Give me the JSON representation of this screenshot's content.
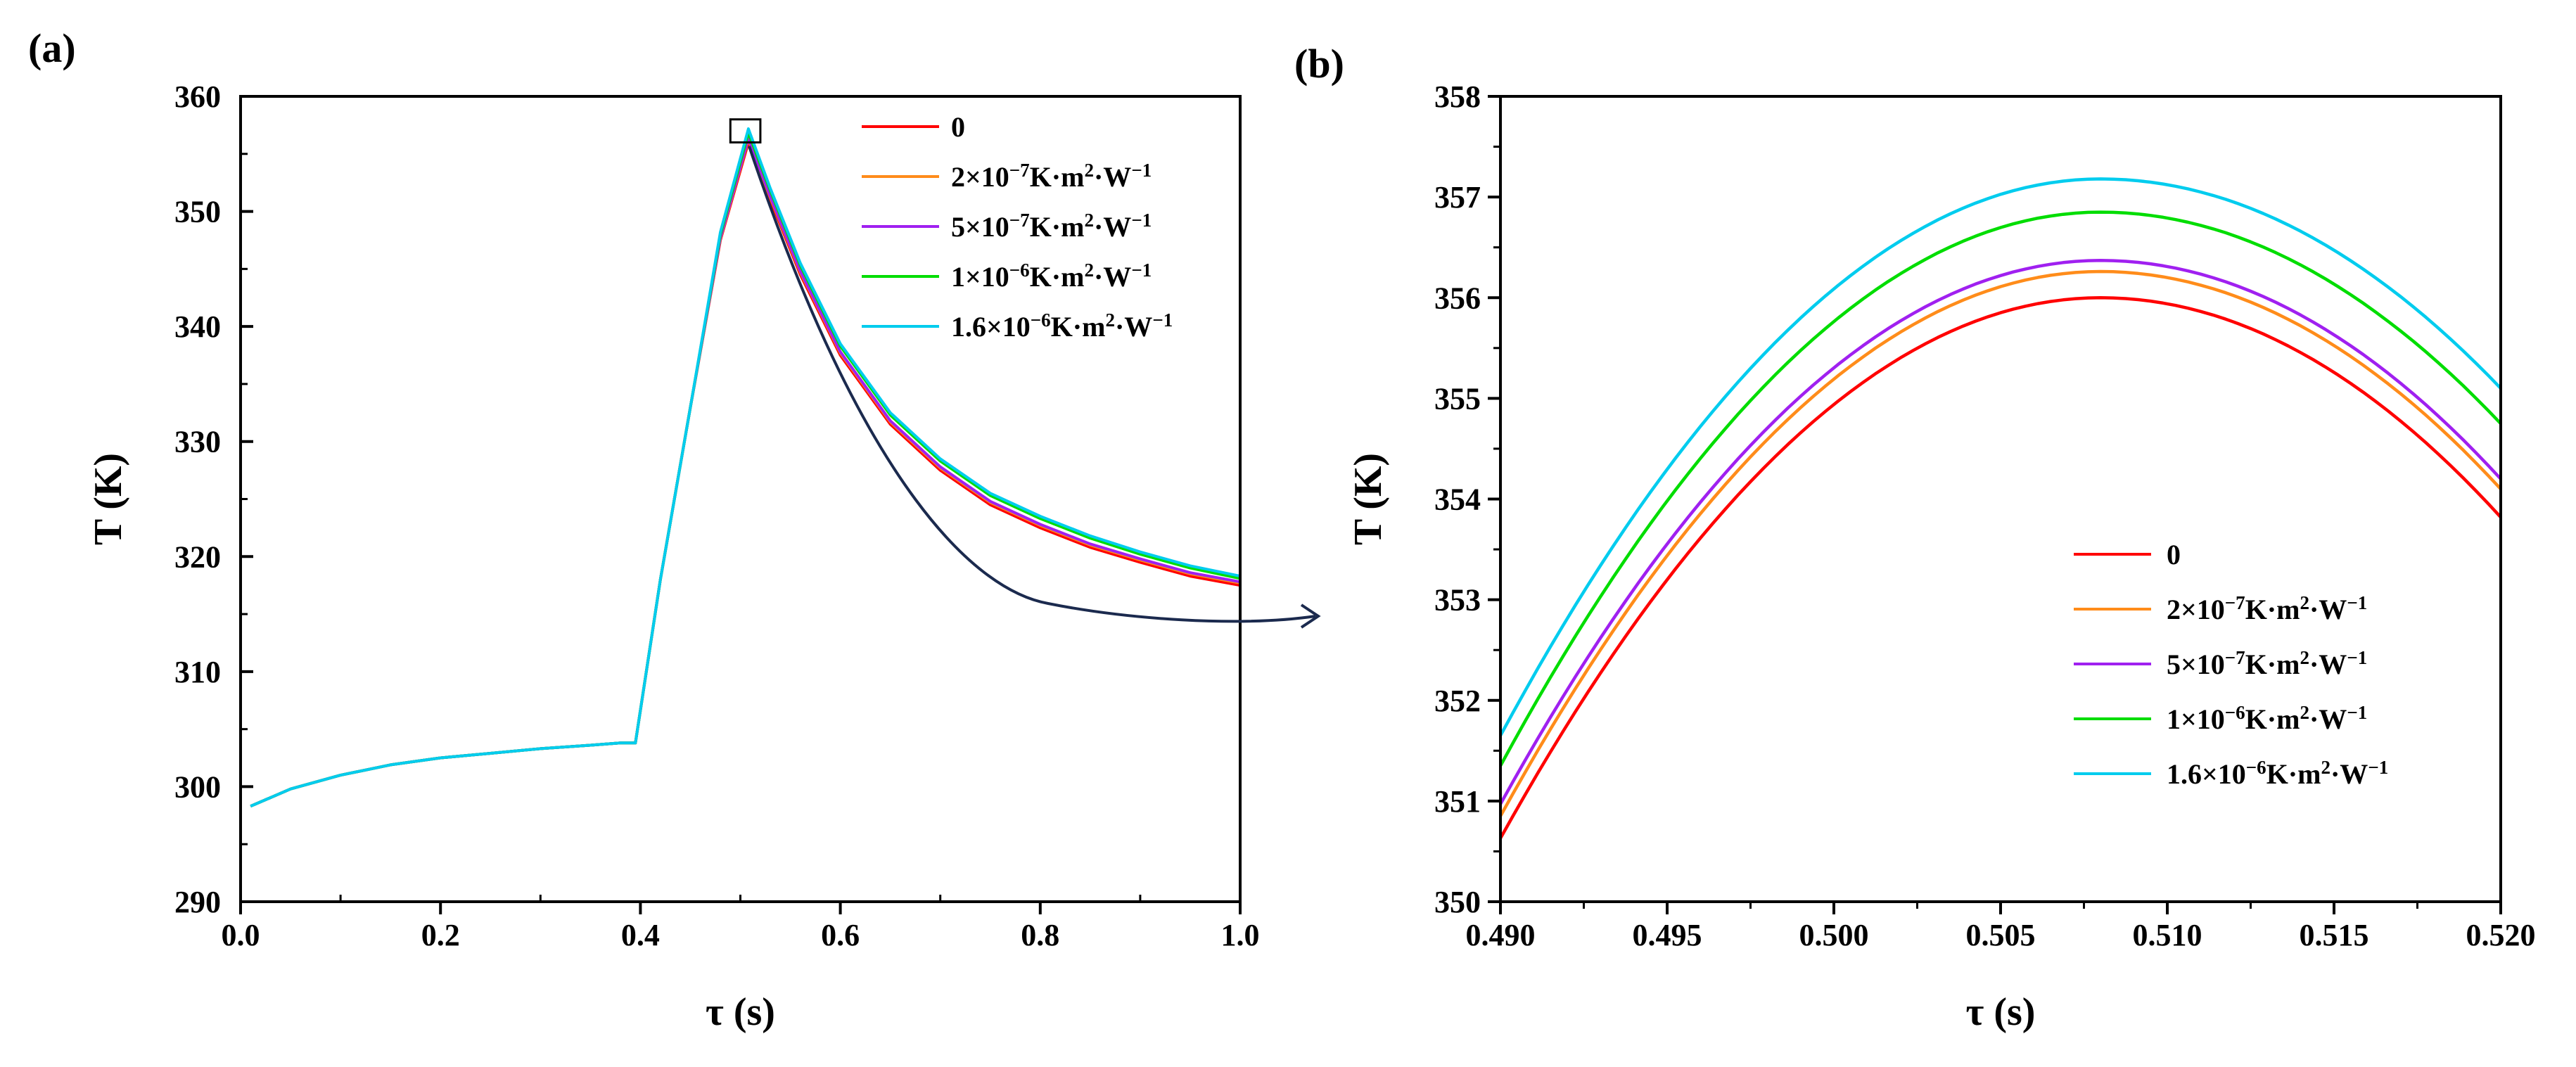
{
  "figure": {
    "panel_a_label": "(a)",
    "panel_b_label": "(b)"
  },
  "chart_data": [
    {
      "type": "line",
      "panel": "(a)",
      "xlabel": "τ (s)",
      "ylabel": "T (K)",
      "xlim": [
        0.0,
        1.0
      ],
      "ylim": [
        290,
        360
      ],
      "xticks": [
        0.0,
        0.2,
        0.4,
        0.6,
        0.8,
        1.0
      ],
      "xtick_labels": [
        "0.0",
        "0.2",
        "0.4",
        "0.6",
        "0.8",
        "1.0"
      ],
      "yticks": [
        290,
        300,
        310,
        320,
        330,
        340,
        350,
        360
      ],
      "ytick_labels": [
        "290",
        "300",
        "310",
        "320",
        "330",
        "340",
        "350",
        "360"
      ],
      "legend_position": "top-right",
      "x": [
        0.01,
        0.05,
        0.1,
        0.15,
        0.2,
        0.25,
        0.3,
        0.35,
        0.38,
        0.395,
        0.42,
        0.45,
        0.48,
        0.508,
        0.53,
        0.56,
        0.6,
        0.65,
        0.7,
        0.75,
        0.8,
        0.85,
        0.9,
        0.95,
        1.0
      ],
      "series": [
        {
          "name": "0",
          "color": "#ff0000",
          "values": [
            298.3,
            299.8,
            301.0,
            301.9,
            302.5,
            302.9,
            303.3,
            303.6,
            303.8,
            303.8,
            318.0,
            333.0,
            347.5,
            356.0,
            351.0,
            344.5,
            337.5,
            331.5,
            327.5,
            324.5,
            322.5,
            320.8,
            319.5,
            318.3,
            317.5
          ]
        },
        {
          "name": "2×10−7K·m2·W−1",
          "label_base": "2×10",
          "label_exp1": "−7",
          "label_mid": "K·m",
          "label_exp2": "2",
          "label_mid2": "·W",
          "label_exp3": "−1",
          "color": "#ff8c1a",
          "values": [
            298.3,
            299.8,
            301.0,
            301.9,
            302.5,
            302.9,
            303.3,
            303.6,
            303.8,
            303.8,
            318.0,
            333.0,
            347.6,
            356.26,
            351.2,
            344.7,
            337.7,
            331.7,
            327.7,
            324.7,
            322.7,
            321.0,
            319.7,
            318.5,
            317.7
          ]
        },
        {
          "name": "5×10−7K·m2·W−1",
          "label_base": "5×10",
          "label_exp1": "−7",
          "label_mid": "K·m",
          "label_exp2": "2",
          "label_mid2": "·W",
          "label_exp3": "−1",
          "color": "#a020f0",
          "values": [
            298.3,
            299.8,
            301.0,
            301.9,
            302.5,
            302.9,
            303.3,
            303.6,
            303.8,
            303.8,
            318.0,
            333.0,
            347.7,
            356.37,
            351.3,
            344.8,
            337.8,
            331.8,
            327.8,
            324.8,
            322.8,
            321.1,
            319.8,
            318.6,
            317.8
          ]
        },
        {
          "name": "1×10−6K·m2·W−1",
          "label_base": "1×10",
          "label_exp1": "−6",
          "label_mid": "K·m",
          "label_exp2": "2",
          "label_mid2": "·W",
          "label_exp3": "−1",
          "color": "#00dd00",
          "values": [
            298.3,
            299.8,
            301.0,
            301.9,
            302.5,
            302.9,
            303.3,
            303.6,
            303.8,
            303.8,
            318.0,
            333.0,
            348.0,
            356.85,
            351.8,
            345.3,
            338.3,
            332.3,
            328.3,
            325.3,
            323.3,
            321.6,
            320.2,
            319.0,
            318.1
          ]
        },
        {
          "name": "1.6×10−6K·m2·W−1",
          "label_base": "1.6×10",
          "label_exp1": "−6",
          "label_mid": "K·m",
          "label_exp2": "2",
          "label_mid2": "·W",
          "label_exp3": "−1",
          "color": "#00ccee",
          "values": [
            298.3,
            299.8,
            301.0,
            301.9,
            302.5,
            302.9,
            303.3,
            303.6,
            303.8,
            303.8,
            318.0,
            333.0,
            348.2,
            357.18,
            352.0,
            345.5,
            338.5,
            332.5,
            328.5,
            325.5,
            323.5,
            321.8,
            320.4,
            319.2,
            318.3
          ]
        }
      ],
      "annotations": [
        "zoom box around peak near τ≈0.508 s",
        "curved arrow leading to panel (b)"
      ]
    },
    {
      "type": "line",
      "panel": "(b)",
      "xlabel": "τ (s)",
      "ylabel": "T (K)",
      "xlim": [
        0.49,
        0.52
      ],
      "ylim": [
        350,
        358
      ],
      "xticks": [
        0.49,
        0.495,
        0.5,
        0.505,
        0.51,
        0.515,
        0.52
      ],
      "xtick_labels": [
        "0.490",
        "0.495",
        "0.500",
        "0.505",
        "0.510",
        "0.515",
        "0.520"
      ],
      "yticks": [
        350,
        351,
        352,
        353,
        354,
        355,
        356,
        357,
        358
      ],
      "ytick_labels": [
        "350",
        "351",
        "352",
        "353",
        "354",
        "355",
        "356",
        "357",
        "358"
      ],
      "legend_position": "lower-right",
      "peak_x": 0.508,
      "series": [
        {
          "name": "0",
          "color": "#ff0000",
          "start": 350.63,
          "peak": 356.0,
          "end": 353.82
        },
        {
          "name": "2×10−7K·m2·W−1",
          "color": "#ff8c1a",
          "start": 350.85,
          "peak": 356.26,
          "end": 354.1
        },
        {
          "name": "5×10−7K·m2·W−1",
          "color": "#a020f0",
          "start": 350.97,
          "peak": 356.37,
          "end": 354.2
        },
        {
          "name": "1×10−6K·m2·W−1",
          "color": "#00dd00",
          "start": 351.35,
          "peak": 356.85,
          "end": 354.75
        },
        {
          "name": "1.6×10−6K·m2·W−1",
          "color": "#00ccee",
          "start": 351.65,
          "peak": 357.18,
          "end": 355.1
        }
      ]
    }
  ]
}
